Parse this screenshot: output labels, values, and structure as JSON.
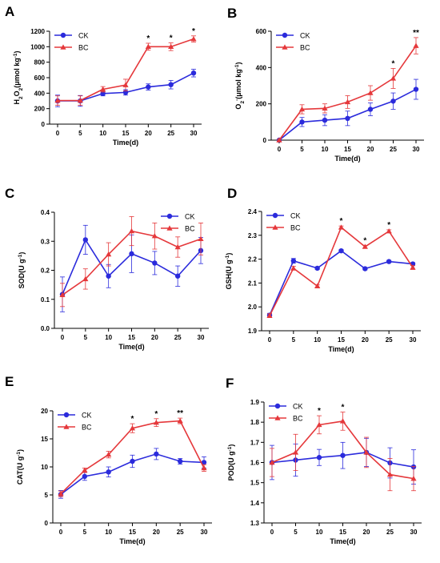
{
  "colors": {
    "ck": "#2b2bdc",
    "bc": "#e5383b",
    "axis": "#000000"
  },
  "chart_data": [
    {
      "panel_label": "A",
      "type": "line",
      "x": [
        0,
        5,
        10,
        15,
        20,
        25,
        30
      ],
      "xticks": [
        "0",
        "5",
        "10",
        "15",
        "20",
        "25",
        "30"
      ],
      "xlabel": "Time(d)",
      "ylabel": "H2O2(μmol kg-1)",
      "ylabel_parts": {
        "main": "H",
        "sub1": "2",
        "mid": "O",
        "sub2": "2",
        "unit": "(μmol kg",
        "sup": "-1",
        "end": ")"
      },
      "ylim": [
        0,
        1200
      ],
      "yticks": [
        0,
        200,
        400,
        600,
        800,
        1000,
        1200
      ],
      "yticklabels": [
        "0",
        "200",
        "400",
        "600",
        "800",
        "1000",
        "1200"
      ],
      "legend": "top-left",
      "series": [
        {
          "name": "CK",
          "marker": "circle",
          "values": [
            300,
            300,
            395,
            410,
            480,
            510,
            660
          ],
          "errors": [
            75,
            70,
            30,
            35,
            40,
            55,
            50
          ]
        },
        {
          "name": "BC",
          "marker": "triangle",
          "values": [
            305,
            305,
            450,
            505,
            1000,
            1000,
            1100
          ],
          "errors": [
            60,
            60,
            35,
            75,
            45,
            50,
            40
          ]
        }
      ],
      "annotations": [
        {
          "x": 20,
          "text": "*"
        },
        {
          "x": 25,
          "text": "*"
        },
        {
          "x": 30,
          "text": "*"
        }
      ]
    },
    {
      "panel_label": "B",
      "type": "line",
      "x": [
        0,
        5,
        10,
        15,
        20,
        25,
        30
      ],
      "xticks": [
        "0",
        "5",
        "10",
        "15",
        "20",
        "25",
        "30"
      ],
      "xlabel": "Time(d)",
      "ylabel": "O2-(μmol kg-1)",
      "ylabel_parts": {
        "main": "O",
        "sub1": "2",
        "sup0": "-",
        "unit": "(μmol kg",
        "sup": "-1",
        "end": ")"
      },
      "ylim": [
        0,
        600
      ],
      "yticks": [
        0,
        200,
        400,
        600
      ],
      "yticklabels": [
        "0",
        "200",
        "400",
        "600"
      ],
      "legend": "top-left",
      "series": [
        {
          "name": "CK",
          "marker": "circle",
          "values": [
            0,
            100,
            110,
            120,
            170,
            215,
            280
          ],
          "errors": [
            5,
            25,
            30,
            40,
            35,
            45,
            55
          ]
        },
        {
          "name": "BC",
          "marker": "triangle",
          "values": [
            0,
            170,
            175,
            210,
            260,
            340,
            520
          ],
          "errors": [
            5,
            25,
            25,
            35,
            40,
            55,
            45
          ]
        }
      ],
      "annotations": [
        {
          "x": 25,
          "text": "*"
        },
        {
          "x": 30,
          "text": "**"
        }
      ]
    },
    {
      "panel_label": "C",
      "type": "line",
      "x": [
        0,
        5,
        10,
        15,
        20,
        25,
        30
      ],
      "xticks": [
        "0",
        "5",
        "10",
        "15",
        "20",
        "25",
        "30"
      ],
      "xlabel": "Time(d)",
      "ylabel": "SOD(U g-1)",
      "ylabel_parts": {
        "main": "SOD(U g",
        "sup": "-1",
        "end": ")"
      },
      "ylim": [
        0,
        0.4
      ],
      "yticks": [
        0,
        0.1,
        0.2,
        0.3,
        0.4
      ],
      "yticklabels": [
        "0.0",
        "0.1",
        "0.2",
        "0.3",
        "0.4"
      ],
      "legend": "top-right",
      "series": [
        {
          "name": "CK",
          "marker": "circle",
          "values": [
            0.117,
            0.305,
            0.18,
            0.257,
            0.225,
            0.18,
            0.268
          ],
          "errors": [
            0.06,
            0.05,
            0.04,
            0.065,
            0.04,
            0.035,
            0.045
          ]
        },
        {
          "name": "BC",
          "marker": "triangle",
          "values": [
            0.115,
            0.17,
            0.255,
            0.335,
            0.318,
            0.28,
            0.308
          ],
          "errors": [
            0.04,
            0.035,
            0.04,
            0.05,
            0.045,
            0.035,
            0.055
          ]
        }
      ],
      "annotations": []
    },
    {
      "panel_label": "D",
      "type": "line",
      "x": [
        0,
        5,
        10,
        15,
        20,
        25,
        30
      ],
      "xticks": [
        "0",
        "5",
        "10",
        "15",
        "20",
        "25",
        "30"
      ],
      "xlabel": "Time(d)",
      "ylabel": "GSH(U g-1)",
      "ylabel_parts": {
        "main": "GSH(U g",
        "sup": "-1",
        "end": ")"
      },
      "ylim": [
        1.9,
        2.4
      ],
      "yticks": [
        1.9,
        2.0,
        2.1,
        2.2,
        2.3,
        2.4
      ],
      "yticklabels": [
        "1.9",
        "2.0",
        "2.1",
        "2.2",
        "2.3",
        "2.4"
      ],
      "legend": "top-left",
      "series": [
        {
          "name": "CK",
          "marker": "circle",
          "values": [
            1.965,
            2.193,
            2.162,
            2.235,
            2.16,
            2.19,
            2.18
          ],
          "errors": [
            0.008,
            0.01,
            0.005,
            0.005,
            0.005,
            0.005,
            0.005
          ]
        },
        {
          "name": "BC",
          "marker": "triangle",
          "values": [
            1.963,
            2.162,
            2.087,
            2.333,
            2.252,
            2.317,
            2.165
          ],
          "errors": [
            0.008,
            0.008,
            0.005,
            0.006,
            0.006,
            0.006,
            0.008
          ]
        }
      ],
      "annotations": [
        {
          "x": 15,
          "text": "*"
        },
        {
          "x": 20,
          "text": "*"
        },
        {
          "x": 25,
          "text": "*"
        }
      ]
    },
    {
      "panel_label": "E",
      "type": "line",
      "x": [
        0,
        5,
        10,
        15,
        20,
        25,
        30
      ],
      "xticks": [
        "0",
        "5",
        "10",
        "15",
        "20",
        "25",
        "30"
      ],
      "xlabel": "Time(d)",
      "ylabel": "CAT(U g-1)",
      "ylabel_parts": {
        "main": "CAT(U g",
        "sup": "-1",
        "end": ")"
      },
      "ylim": [
        0,
        20
      ],
      "yticks": [
        0,
        5,
        10,
        15,
        20
      ],
      "yticklabels": [
        "0",
        "5",
        "10",
        "15",
        "20"
      ],
      "legend": "top-left",
      "series": [
        {
          "name": "CK",
          "marker": "circle",
          "values": [
            5.1,
            8.3,
            9.1,
            11.0,
            12.3,
            11.0,
            10.8
          ],
          "errors": [
            0.7,
            0.7,
            0.9,
            1.1,
            1.0,
            0.5,
            1.0
          ]
        },
        {
          "name": "BC",
          "marker": "triangle",
          "values": [
            5.2,
            9.4,
            12.2,
            16.9,
            17.9,
            18.2,
            9.8
          ],
          "errors": [
            0.5,
            0.4,
            0.6,
            0.8,
            0.7,
            0.5,
            0.6
          ]
        }
      ],
      "annotations": [
        {
          "x": 15,
          "text": "*"
        },
        {
          "x": 20,
          "text": "*"
        },
        {
          "x": 25,
          "text": "**"
        }
      ]
    },
    {
      "panel_label": "F",
      "type": "line",
      "x": [
        0,
        5,
        10,
        15,
        20,
        25,
        30
      ],
      "xticks": [
        "0",
        "5",
        "10",
        "15",
        "20",
        "25",
        "30"
      ],
      "xlabel": "Time(d)",
      "ylabel": "POD(U g-1)",
      "ylabel_parts": {
        "main": "POD(U g",
        "sup": "-1",
        "end": ")"
      },
      "ylim": [
        1.3,
        1.9
      ],
      "yticks": [
        1.3,
        1.4,
        1.5,
        1.6,
        1.7,
        1.8,
        1.9
      ],
      "yticklabels": [
        "1.3",
        "1.4",
        "1.5",
        "1.6",
        "1.7",
        "1.8",
        "1.9"
      ],
      "legend": "top-left",
      "series": [
        {
          "name": "CK",
          "marker": "circle",
          "values": [
            1.6,
            1.612,
            1.625,
            1.635,
            1.65,
            1.598,
            1.578
          ],
          "errors": [
            0.085,
            0.08,
            0.04,
            0.065,
            0.07,
            0.075,
            0.085
          ]
        },
        {
          "name": "BC",
          "marker": "triangle",
          "values": [
            1.6,
            1.65,
            1.787,
            1.805,
            1.65,
            1.54,
            1.52
          ],
          "errors": [
            0.07,
            0.09,
            0.045,
            0.045,
            0.075,
            0.08,
            0.06
          ]
        }
      ],
      "annotations": [
        {
          "x": 10,
          "text": "*"
        },
        {
          "x": 15,
          "text": "*"
        }
      ]
    }
  ]
}
